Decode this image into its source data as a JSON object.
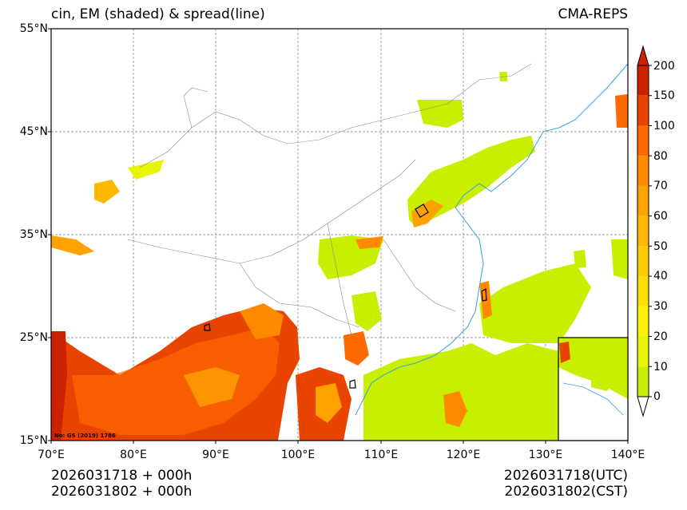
{
  "title_left": "cin, EM (shaded) & spread(line)",
  "title_right": "CMA-REPS",
  "lat_labels": [
    "55°N",
    "45°N",
    "35°N",
    "25°N",
    "15°N"
  ],
  "lon_labels": [
    "70°E",
    "80°E",
    "90°E",
    "100°E",
    "110°E",
    "120°E",
    "130°E",
    "140°E"
  ],
  "colorbar": {
    "labels": [
      "200",
      "150",
      "100",
      "80",
      "70",
      "60",
      "50",
      "40",
      "30",
      "20",
      "10",
      "0"
    ],
    "colors": [
      "#cc2200",
      "#e84400",
      "#ff6a00",
      "#ff8a00",
      "#ffa200",
      "#ffb800",
      "#ffcc00",
      "#ffe000",
      "#fff200",
      "#e8f500",
      "#c8ef00"
    ],
    "over_color": "#cc2200",
    "under_color": "#ffffff"
  },
  "map_note": "No: GS (2019) 1786",
  "footer_left": [
    "2026031718  +  000h",
    "2026031802  +  000h"
  ],
  "footer_right": [
    "2026031718(UTC)",
    "2026031802(CST)"
  ]
}
